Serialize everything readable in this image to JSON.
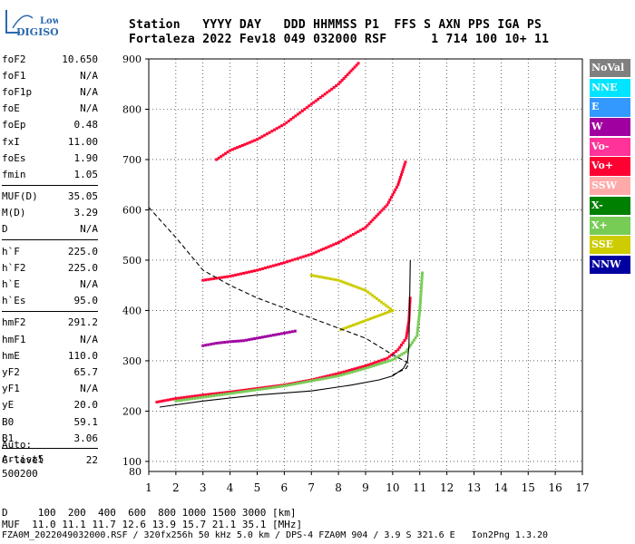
{
  "logo": {
    "line1": "Lowell",
    "line2": "DIGISONDE"
  },
  "header": {
    "row1": "Station   YYYY DAY   DDD HHMMSS P1  FFS S AXN PPS IGA PS",
    "row2": "Fortaleza 2022 Fev18 049 032000 RSF      1 714 100 10+ 11"
  },
  "params": [
    [
      {
        "k": "foF2",
        "v": "10.650"
      },
      {
        "k": "foF1",
        "v": "N/A"
      },
      {
        "k": "foF1p",
        "v": "N/A"
      },
      {
        "k": "foE",
        "v": "N/A"
      },
      {
        "k": "foEp",
        "v": "0.48"
      },
      {
        "k": "fxI",
        "v": "11.00"
      },
      {
        "k": "foEs",
        "v": "1.90"
      },
      {
        "k": "fmin",
        "v": "1.05"
      }
    ],
    [
      {
        "k": "MUF(D)",
        "v": "35.05"
      },
      {
        "k": "M(D)",
        "v": "3.29"
      },
      {
        "k": "D",
        "v": "N/A"
      }
    ],
    [
      {
        "k": "h`F",
        "v": "225.0"
      },
      {
        "k": "h`F2",
        "v": "225.0"
      },
      {
        "k": "h`E",
        "v": "N/A"
      },
      {
        "k": "h`Es",
        "v": "95.0"
      }
    ],
    [
      {
        "k": "hmF2",
        "v": "291.2"
      },
      {
        "k": "hmF1",
        "v": "N/A"
      },
      {
        "k": "hmE",
        "v": "110.0"
      },
      {
        "k": "yF2",
        "v": "65.7"
      },
      {
        "k": "yF1",
        "v": "N/A"
      },
      {
        "k": "yE",
        "v": "20.0"
      },
      {
        "k": "B0",
        "v": "59.1"
      },
      {
        "k": "B1",
        "v": "3.06"
      }
    ],
    [
      {
        "k": "C-level",
        "v": "22"
      }
    ]
  ],
  "auto": {
    "line1": "Auto:",
    "line2": "Artist5",
    "line3": "500200"
  },
  "legend": [
    {
      "label": "NoVal",
      "color": "#808080"
    },
    {
      "label": "NNE",
      "color": "#00e5ff"
    },
    {
      "label": "E",
      "color": "#3399ff"
    },
    {
      "label": "W",
      "color": "#a000a0"
    },
    {
      "label": "Vo-",
      "color": "#ff3399"
    },
    {
      "label": "Vo+",
      "color": "#ff0033"
    },
    {
      "label": "SSW",
      "color": "#ffaaaa"
    },
    {
      "label": "X-",
      "color": "#008000"
    },
    {
      "label": "X+",
      "color": "#77cc55"
    },
    {
      "label": "SSE",
      "color": "#cccc00"
    },
    {
      "label": "NNW",
      "color": "#0000a0"
    }
  ],
  "bottom": {
    "row1": "D     100  200  400  600  800 1000 1500 3000 [km]",
    "row2": "MUF  11.0 11.1 11.7 12.6 13.9 15.7 21.1 35.1 [MHz]",
    "row3": "FZA0M_2022049032000.RSF / 320fx256h 50 kHz 5.0 km / DPS-4 FZA0M 904 / 3.9 S 321.6 E   Ion2Png 1.3.20"
  },
  "chart_data": {
    "type": "scatter",
    "xlim": [
      1,
      17
    ],
    "ylim": [
      80,
      900
    ],
    "xticks": [
      1,
      2,
      3,
      4,
      5,
      6,
      7,
      8,
      9,
      10,
      11,
      12,
      13,
      14,
      15,
      16,
      17
    ],
    "yticks": [
      100,
      200,
      300,
      400,
      500,
      600,
      700,
      800,
      900
    ],
    "xlabel": "",
    "ylabel": "",
    "traces": [
      {
        "name": "O-trace 1st hop",
        "color": "#ff0033",
        "points": [
          [
            1.3,
            218
          ],
          [
            2,
            225
          ],
          [
            3,
            232
          ],
          [
            4,
            238
          ],
          [
            5,
            245
          ],
          [
            6,
            252
          ],
          [
            7,
            262
          ],
          [
            8,
            275
          ],
          [
            9,
            290
          ],
          [
            9.8,
            305
          ],
          [
            10.2,
            322
          ],
          [
            10.5,
            345
          ],
          [
            10.6,
            380
          ],
          [
            10.65,
            430
          ]
        ]
      },
      {
        "name": "X-trace 1st hop",
        "color": "#77cc55",
        "points": [
          [
            2,
            220
          ],
          [
            4,
            235
          ],
          [
            6,
            250
          ],
          [
            8,
            270
          ],
          [
            9,
            285
          ],
          [
            10,
            302
          ],
          [
            10.5,
            318
          ],
          [
            10.9,
            350
          ],
          [
            11.0,
            400
          ],
          [
            11.1,
            480
          ]
        ]
      },
      {
        "name": "O-trace 2nd hop",
        "color": "#ff0033",
        "points": [
          [
            3,
            460
          ],
          [
            4,
            468
          ],
          [
            5,
            480
          ],
          [
            6,
            495
          ],
          [
            7,
            512
          ],
          [
            8,
            535
          ],
          [
            9,
            565
          ],
          [
            9.8,
            610
          ],
          [
            10.2,
            650
          ],
          [
            10.5,
            700
          ]
        ]
      },
      {
        "name": "O-trace 3rd hop",
        "color": "#ff0033",
        "points": [
          [
            3.5,
            700
          ],
          [
            4,
            718
          ],
          [
            5,
            740
          ],
          [
            6,
            770
          ],
          [
            7,
            810
          ],
          [
            8,
            850
          ],
          [
            8.8,
            895
          ]
        ]
      },
      {
        "name": "W spread",
        "color": "#a000a0",
        "points": [
          [
            3,
            330
          ],
          [
            3.5,
            335
          ],
          [
            4,
            338
          ],
          [
            4.5,
            340
          ],
          [
            5,
            345
          ],
          [
            5.5,
            350
          ],
          [
            6,
            355
          ],
          [
            6.5,
            360
          ]
        ]
      },
      {
        "name": "SSE cluster",
        "color": "#cccc00",
        "points": [
          [
            7,
            470
          ],
          [
            8,
            460
          ],
          [
            9,
            440
          ],
          [
            9.5,
            420
          ],
          [
            10,
            400
          ],
          [
            9,
            380
          ],
          [
            8,
            360
          ]
        ]
      }
    ],
    "curves": [
      {
        "name": "true height profile",
        "style": "solid",
        "points": [
          [
            1.4,
            208
          ],
          [
            3,
            220
          ],
          [
            5,
            232
          ],
          [
            7,
            240
          ],
          [
            8.5,
            252
          ],
          [
            9.5,
            262
          ],
          [
            10,
            270
          ],
          [
            10.4,
            285
          ],
          [
            10.55,
            300
          ],
          [
            10.6,
            330
          ],
          [
            10.62,
            400
          ],
          [
            10.65,
            500
          ]
        ]
      },
      {
        "name": "muf curve",
        "style": "dashed",
        "points": [
          [
            1,
            605
          ],
          [
            2,
            545
          ],
          [
            3,
            480
          ],
          [
            4,
            450
          ],
          [
            5,
            425
          ],
          [
            6,
            405
          ],
          [
            7,
            385
          ],
          [
            8,
            365
          ],
          [
            9,
            345
          ],
          [
            10,
            312
          ],
          [
            10.6,
            295
          ],
          [
            10.5,
            285
          ],
          [
            10,
            272
          ]
        ]
      }
    ]
  }
}
